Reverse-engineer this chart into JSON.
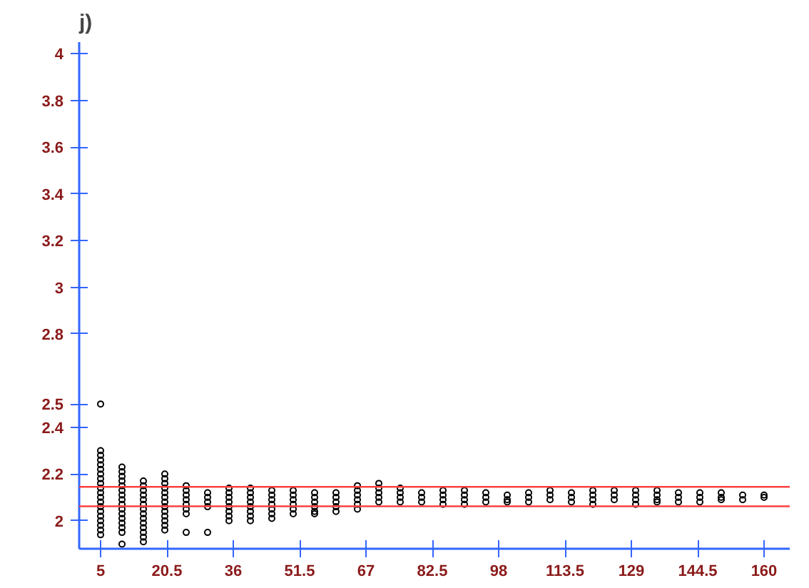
{
  "chart_data": {
    "type": "scatter",
    "title": "j)",
    "marker": "circle",
    "xlim": [
      0,
      166
    ],
    "ylim": [
      1.88,
      4.05
    ],
    "xticks": [
      5,
      20.5,
      36,
      51.5,
      67,
      82.5,
      98,
      113.5,
      129,
      144.5,
      160
    ],
    "yticks": [
      2,
      2.2,
      2.4,
      2.5,
      2.8,
      3,
      3.2,
      3.4,
      3.6,
      3.8,
      4
    ],
    "ref_lines": [
      {
        "axis": "y",
        "value": 2.145,
        "label": null,
        "color": "#ff4040"
      },
      {
        "axis": "y",
        "value": 2.062,
        "label": null,
        "color": "#ff4040"
      }
    ],
    "series": [
      {
        "color": "#000000",
        "x": [
          5,
          5,
          5,
          5,
          5,
          5,
          5,
          5,
          5,
          5,
          5,
          5,
          5,
          5,
          5,
          5,
          5,
          5,
          5,
          5,
          10,
          10,
          10,
          10,
          10,
          10,
          10,
          10,
          10,
          10,
          10,
          10,
          10,
          10,
          10,
          10,
          15,
          15,
          15,
          15,
          15,
          15,
          15,
          15,
          15,
          15,
          15,
          15,
          15,
          15,
          20,
          20,
          20,
          20,
          20,
          20,
          20,
          20,
          20,
          20,
          20,
          20,
          20,
          25,
          25,
          25,
          25,
          25,
          25,
          25,
          25,
          30,
          30,
          30,
          30,
          30,
          35,
          35,
          35,
          35,
          35,
          35,
          35,
          35,
          40,
          40,
          40,
          40,
          40,
          40,
          40,
          40,
          45,
          45,
          45,
          45,
          45,
          45,
          45,
          50,
          50,
          50,
          50,
          50,
          50,
          55,
          55,
          55,
          55,
          55,
          55,
          60,
          60,
          60,
          60,
          60,
          65,
          65,
          65,
          65,
          65,
          65,
          70,
          70,
          70,
          70,
          70,
          75,
          75,
          75,
          75,
          80,
          80,
          80,
          85,
          85,
          85,
          85,
          90,
          90,
          90,
          90,
          95,
          95,
          95,
          100,
          100,
          100,
          105,
          105,
          105,
          110,
          110,
          110,
          115,
          115,
          115,
          120,
          120,
          120,
          120,
          125,
          125,
          125,
          130,
          130,
          130,
          130,
          135,
          135,
          135,
          135,
          140,
          140,
          140,
          145,
          145,
          145,
          150,
          150,
          150,
          155,
          155,
          160,
          160
        ],
        "values": [
          2.5,
          2.3,
          2.28,
          2.26,
          2.24,
          2.22,
          2.2,
          2.18,
          2.16,
          2.14,
          2.12,
          2.1,
          2.08,
          2.06,
          2.04,
          2.02,
          2.0,
          1.98,
          1.96,
          1.94,
          2.23,
          2.21,
          2.19,
          2.17,
          2.15,
          2.13,
          2.11,
          2.09,
          2.07,
          2.05,
          2.03,
          2.01,
          1.99,
          1.97,
          1.95,
          1.9,
          2.17,
          2.15,
          2.13,
          2.11,
          2.09,
          2.07,
          2.05,
          2.03,
          2.01,
          1.99,
          1.97,
          1.95,
          1.93,
          1.91,
          2.2,
          2.18,
          2.16,
          2.14,
          2.12,
          2.1,
          2.08,
          2.06,
          2.04,
          2.02,
          2.0,
          1.98,
          1.96,
          2.15,
          2.13,
          2.11,
          2.09,
          2.07,
          2.05,
          2.03,
          1.95,
          2.12,
          2.1,
          2.08,
          2.06,
          1.95,
          2.14,
          2.12,
          2.1,
          2.08,
          2.06,
          2.04,
          2.02,
          2.0,
          2.14,
          2.12,
          2.1,
          2.08,
          2.06,
          2.04,
          2.02,
          2.0,
          2.13,
          2.11,
          2.09,
          2.07,
          2.05,
          2.03,
          2.01,
          2.13,
          2.11,
          2.09,
          2.07,
          2.05,
          2.03,
          2.12,
          2.1,
          2.08,
          2.06,
          2.04,
          2.03,
          2.12,
          2.1,
          2.08,
          2.06,
          2.04,
          2.15,
          2.13,
          2.11,
          2.09,
          2.07,
          2.05,
          2.16,
          2.14,
          2.12,
          2.1,
          2.08,
          2.14,
          2.12,
          2.1,
          2.08,
          2.12,
          2.1,
          2.08,
          2.13,
          2.11,
          2.09,
          2.07,
          2.13,
          2.11,
          2.09,
          2.07,
          2.12,
          2.1,
          2.08,
          2.11,
          2.09,
          2.08,
          2.12,
          2.1,
          2.08,
          2.13,
          2.11,
          2.09,
          2.12,
          2.1,
          2.08,
          2.13,
          2.11,
          2.09,
          2.07,
          2.13,
          2.11,
          2.09,
          2.13,
          2.11,
          2.09,
          2.07,
          2.13,
          2.11,
          2.09,
          2.08,
          2.12,
          2.1,
          2.08,
          2.12,
          2.1,
          2.08,
          2.12,
          2.1,
          2.09,
          2.11,
          2.09,
          2.11,
          2.1
        ]
      }
    ]
  }
}
